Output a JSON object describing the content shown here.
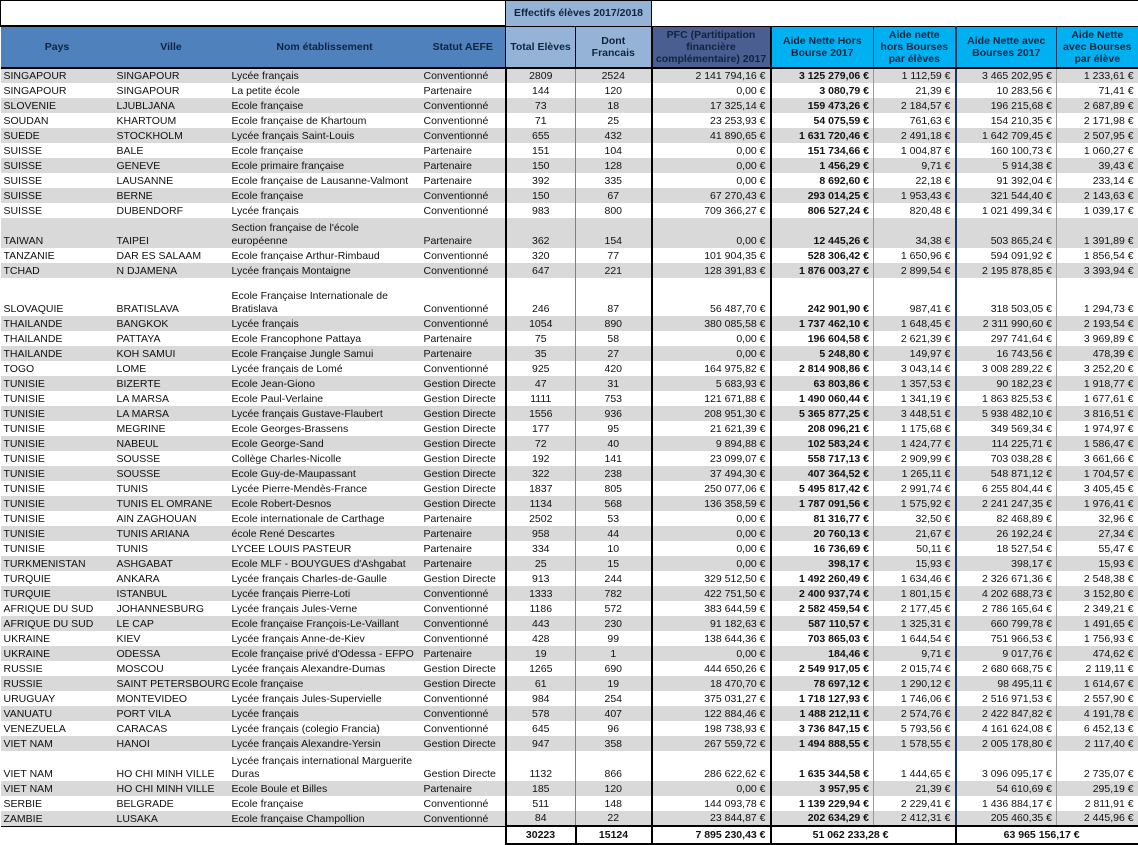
{
  "title_band": "Effectifs élèves 2017/2018",
  "columns": [
    "Pays",
    "Ville",
    "Nom établissement",
    "Statut AEFE",
    "Total Elèves",
    "Dont Francais",
    "PFC\n(Partitipation financière complémentaire) 2017",
    "Aide Nette Hors Bourse 2017",
    "Aide nette hors Bourses par élèves",
    "Aide Nette avec Bourses 2017",
    "Aide Nette avec Bourses par élève"
  ],
  "rows": [
    [
      "SINGAPOUR",
      "SINGAPOUR",
      "Lycée français",
      "Conventionné",
      "2809",
      "2524",
      "2 141 794,16 €",
      "3 125 279,06 €",
      "1 112,59 €",
      "3 465 202,95 €",
      "1 233,61 €"
    ],
    [
      "SINGAPOUR",
      "SINGAPOUR",
      "La petite école",
      "Partenaire",
      "144",
      "120",
      "0,00 €",
      "3 080,79 €",
      "21,39 €",
      "10 283,56 €",
      "71,41 €"
    ],
    [
      "SLOVENIE",
      "LJUBLJANA",
      "Ecole française",
      "Conventionné",
      "73",
      "18",
      "17 325,14 €",
      "159 473,26 €",
      "2 184,57 €",
      "196 215,68 €",
      "2 687,89 €"
    ],
    [
      "SOUDAN",
      "KHARTOUM",
      "Ecole française de Khartoum",
      "Conventionné",
      "71",
      "25",
      "23 253,93 €",
      "54 075,59 €",
      "761,63 €",
      "154 210,35 €",
      "2 171,98 €"
    ],
    [
      "SUEDE",
      "STOCKHOLM",
      "Lycée français Saint-Louis",
      "Conventionné",
      "655",
      "432",
      "41 890,65 €",
      "1 631 720,46 €",
      "2 491,18 €",
      "1 642 709,45 €",
      "2 507,95 €"
    ],
    [
      "SUISSE",
      "BALE",
      "Ecole française",
      "Partenaire",
      "151",
      "104",
      "0,00 €",
      "151 734,66 €",
      "1 004,87 €",
      "160 100,73 €",
      "1 060,27 €"
    ],
    [
      "SUISSE",
      "GENEVE",
      "Ecole primaire française",
      "Partenaire",
      "150",
      "128",
      "0,00 €",
      "1 456,29 €",
      "9,71 €",
      "5 914,38 €",
      "39,43 €"
    ],
    [
      "SUISSE",
      "LAUSANNE",
      "Ecole française de Lausanne-Valmont",
      "Partenaire",
      "392",
      "335",
      "0,00 €",
      "8 692,60 €",
      "22,18 €",
      "91 392,04 €",
      "233,14 €"
    ],
    [
      "SUISSE",
      "BERNE",
      "Ecole française",
      "Conventionné",
      "150",
      "67",
      "67 270,43 €",
      "293 014,25 €",
      "1 953,43 €",
      "321 544,40 €",
      "2 143,63 €"
    ],
    [
      "SUISSE",
      "DUBENDORF",
      "Lycée français",
      "Conventionné",
      "983",
      "800",
      "709 366,27 €",
      "806 527,24 €",
      "820,48 €",
      "1 021 499,34 €",
      "1 039,17 €"
    ],
    [
      "TAIWAN",
      "TAIPEI",
      "Section française de l'école européenne",
      "Partenaire",
      "362",
      "154",
      "0,00 €",
      "12 445,26 €",
      "34,38 €",
      "503 865,24 €",
      "1 391,89 €"
    ],
    [
      "TANZANIE",
      "DAR ES SALAAM",
      "Ecole française Arthur-Rimbaud",
      "Conventionné",
      "320",
      "77",
      "101 904,35 €",
      "528 306,42 €",
      "1 650,96 €",
      "594 091,92 €",
      "1 856,54 €"
    ],
    [
      "TCHAD",
      "N DJAMENA",
      "Lycée français Montaigne",
      "Conventionné",
      "647",
      "221",
      "128 391,83 €",
      "1 876 003,27 €",
      "2 899,54 €",
      "2 195 878,85 €",
      "3 393,94 €"
    ],
    [
      "SLOVAQUIE",
      "BRATISLAVA",
      "Ecole Française Internationale de Bratislava",
      "Conventionné",
      "246",
      "87",
      "56 487,70 €",
      "242 901,90 €",
      "987,41 €",
      "318 503,05 €",
      "1 294,73 €"
    ],
    [
      "THAILANDE",
      "BANGKOK",
      "Lycée français",
      "Conventionné",
      "1054",
      "890",
      "380 085,58 €",
      "1 737 462,10 €",
      "1 648,45 €",
      "2 311 990,60 €",
      "2 193,54 €"
    ],
    [
      "THAILANDE",
      "PATTAYA",
      "Ecole Francophone Pattaya",
      "Partenaire",
      "75",
      "58",
      "0,00 €",
      "196 604,58 €",
      "2 621,39 €",
      "297 741,64 €",
      "3 969,89 €"
    ],
    [
      "THAILANDE",
      "KOH SAMUI",
      "Ecole  Française Jungle Samui",
      "Partenaire",
      "35",
      "27",
      "0,00 €",
      "5 248,80 €",
      "149,97 €",
      "16 743,56 €",
      "478,39 €"
    ],
    [
      "TOGO",
      "LOME",
      "Lycée français de Lomé",
      "Conventionné",
      "925",
      "420",
      "164 975,82 €",
      "2 814 908,86 €",
      "3 043,14 €",
      "3 008 289,22 €",
      "3 252,20 €"
    ],
    [
      "TUNISIE",
      "BIZERTE",
      "Ecole Jean-Giono",
      "Gestion Directe",
      "47",
      "31",
      "5 683,93 €",
      "63 803,86 €",
      "1 357,53 €",
      "90 182,23 €",
      "1 918,77 €"
    ],
    [
      "TUNISIE",
      "LA MARSA",
      "Ecole Paul-Verlaine",
      "Gestion Directe",
      "1111",
      "753",
      "121 671,88 €",
      "1 490 060,44 €",
      "1 341,19 €",
      "1 863 825,53 €",
      "1 677,61 €"
    ],
    [
      "TUNISIE",
      "LA MARSA",
      "Lycée français Gustave-Flaubert",
      "Gestion Directe",
      "1556",
      "936",
      "208 951,30 €",
      "5 365 877,25 €",
      "3 448,51 €",
      "5 938 482,10 €",
      "3 816,51 €"
    ],
    [
      "TUNISIE",
      "MEGRINE",
      "Ecole Georges-Brassens",
      "Gestion Directe",
      "177",
      "95",
      "21 621,39 €",
      "208 096,21 €",
      "1 175,68 €",
      "349 569,34 €",
      "1 974,97 €"
    ],
    [
      "TUNISIE",
      "NABEUL",
      "Ecole George-Sand",
      "Gestion Directe",
      "72",
      "40",
      "9 894,88 €",
      "102 583,24 €",
      "1 424,77 €",
      "114 225,71 €",
      "1 586,47 €"
    ],
    [
      "TUNISIE",
      "SOUSSE",
      "Collège Charles-Nicolle",
      "Gestion Directe",
      "192",
      "141",
      "23 099,07 €",
      "558 717,13 €",
      "2 909,99 €",
      "703 038,28 €",
      "3 661,66 €"
    ],
    [
      "TUNISIE",
      "SOUSSE",
      "Ecole Guy-de-Maupassant",
      "Gestion Directe",
      "322",
      "238",
      "37 494,30 €",
      "407 364,52 €",
      "1 265,11 €",
      "548 871,12 €",
      "1 704,57 €"
    ],
    [
      "TUNISIE",
      "TUNIS",
      "Lycée Pierre-Mendès-France",
      "Gestion Directe",
      "1837",
      "805",
      "250 077,06 €",
      "5 495 817,42 €",
      "2 991,74 €",
      "6 255 804,44 €",
      "3 405,45 €"
    ],
    [
      "TUNISIE",
      "TUNIS EL OMRANE",
      "Ecole Robert-Desnos",
      "Gestion Directe",
      "1134",
      "568",
      "136 358,59 €",
      "1 787 091,56 €",
      "1 575,92 €",
      "2 241 247,35 €",
      "1 976,41 €"
    ],
    [
      "TUNISIE",
      "AIN ZAGHOUAN",
      "Ecole internationale de Carthage",
      "Partenaire",
      "2502",
      "53",
      "0,00 €",
      "81 316,77 €",
      "32,50 €",
      "82 468,89 €",
      "32,96 €"
    ],
    [
      "TUNISIE",
      "TUNIS ARIANA",
      "école  René Descartes",
      "Partenaire",
      "958",
      "44",
      "0,00 €",
      "20 760,13 €",
      "21,67 €",
      "26 192,24 €",
      "27,34 €"
    ],
    [
      "TUNISIE",
      "TUNIS",
      "LYCEE LOUIS PASTEUR",
      "Partenaire",
      "334",
      "10",
      "0,00 €",
      "16 736,69 €",
      "50,11 €",
      "18 527,54 €",
      "55,47 €"
    ],
    [
      "TURKMENISTAN",
      "ASHGABAT",
      "Ecole MLF - BOUYGUES d'Ashgabat",
      "Partenaire",
      "25",
      "15",
      "0,00 €",
      "398,17 €",
      "15,93 €",
      "398,17 €",
      "15,93 €"
    ],
    [
      "TURQUIE",
      "ANKARA",
      "Lycée français Charles-de-Gaulle",
      "Gestion Directe",
      "913",
      "244",
      "329 512,50 €",
      "1 492 260,49 €",
      "1 634,46 €",
      "2 326 671,36 €",
      "2 548,38 €"
    ],
    [
      "TURQUIE",
      "ISTANBUL",
      "Lycée français Pierre-Loti",
      "Conventionné",
      "1333",
      "782",
      "422 751,50 €",
      "2 400 937,74 €",
      "1 801,15 €",
      "4 202 688,73 €",
      "3 152,80 €"
    ],
    [
      "AFRIQUE DU SUD",
      "JOHANNESBURG",
      "Lycée français Jules-Verne",
      "Conventionné",
      "1186",
      "572",
      "383 644,59 €",
      "2 582 459,54 €",
      "2 177,45 €",
      "2 786 165,64 €",
      "2 349,21 €"
    ],
    [
      "AFRIQUE DU SUD",
      "LE CAP",
      "Ecole française François-Le-Vaillant",
      "Conventionné",
      "443",
      "230",
      "91 182,63 €",
      "587 110,57 €",
      "1 325,31 €",
      "660 799,78 €",
      "1 491,65 €"
    ],
    [
      "UKRAINE",
      "KIEV",
      "Lycée français Anne-de-Kiev",
      "Conventionné",
      "428",
      "99",
      "138 644,36 €",
      "703 865,03 €",
      "1 644,54 €",
      "751 966,53 €",
      "1 756,93 €"
    ],
    [
      "UKRAINE",
      "ODESSA",
      "Ecole française privé d'Odessa - EFPO",
      "Partenaire",
      "19",
      "1",
      "0,00 €",
      "184,46 €",
      "9,71 €",
      "9 017,76 €",
      "474,62 €"
    ],
    [
      "RUSSIE",
      "MOSCOU",
      "Lycée français Alexandre-Dumas",
      "Gestion Directe",
      "1265",
      "690",
      "444 650,26 €",
      "2 549 917,05 €",
      "2 015,74 €",
      "2 680 668,75 €",
      "2 119,11 €"
    ],
    [
      "RUSSIE",
      "SAINT PETERSBOURG",
      "Ecole française",
      "Gestion Directe",
      "61",
      "19",
      "18 470,70 €",
      "78 697,12 €",
      "1 290,12 €",
      "98 495,11 €",
      "1 614,67 €"
    ],
    [
      "URUGUAY",
      "MONTEVIDEO",
      "Lycée français Jules-Supervielle",
      "Conventionné",
      "984",
      "254",
      "375 031,27 €",
      "1 718 127,93 €",
      "1 746,06 €",
      "2 516 971,53 €",
      "2 557,90 €"
    ],
    [
      "VANUATU",
      "PORT VILA",
      "Lycée français",
      "Conventionné",
      "578",
      "407",
      "122 884,46 €",
      "1 488 212,11 €",
      "2 574,76 €",
      "2 422 847,82 €",
      "4 191,78 €"
    ],
    [
      "VENEZUELA",
      "CARACAS",
      "Lycée français (colegio Francia)",
      "Conventionné",
      "645",
      "96",
      "198 738,93 €",
      "3 736 847,15 €",
      "5 793,56 €",
      "4 161 624,08 €",
      "6 452,13 €"
    ],
    [
      "VIET NAM",
      "HANOI",
      "Lycée français Alexandre-Yersin",
      "Gestion Directe",
      "947",
      "358",
      "267 559,72 €",
      "1 494 888,55 €",
      "1 578,55 €",
      "2 005 178,80 €",
      "2 117,40 €"
    ],
    [
      "VIET NAM",
      "HO CHI MINH VILLE",
      "Lycée français international Marguerite Duras",
      "Gestion Directe",
      "1132",
      "866",
      "286 622,62 €",
      "1 635 344,58 €",
      "1 444,65 €",
      "3 096 095,17 €",
      "2 735,07 €"
    ],
    [
      "VIET NAM",
      "HO CHI MINH VILLE",
      "Ecole Boule et Billes",
      "Partenaire",
      "185",
      "120",
      "0,00 €",
      "3 957,95 €",
      "21,39 €",
      "54 610,69 €",
      "295,19 €"
    ],
    [
      "SERBIE",
      "BELGRADE",
      "Ecole française",
      "Conventionné",
      "511",
      "148",
      "144 093,78 €",
      "1 139 229,94 €",
      "2 229,41 €",
      "1 436 884,17 €",
      "2 811,91 €"
    ],
    [
      "ZAMBIE",
      "LUSAKA",
      "Ecole française Champollion",
      "Conventionné",
      "84",
      "22",
      "23 844,87 €",
      "202 634,29 €",
      "2 412,31 €",
      "205 460,35 €",
      "2 445,96 €"
    ]
  ],
  "totals": {
    "total_eleves": "30223",
    "dont_francais": "15124",
    "pfc": "7 895 230,43 €",
    "aide_hors": "51 062 233,28 €",
    "aide_avec": "63 965 156,17 €"
  },
  "colors": {
    "header_blue": "#4f81bd",
    "header_light_blue": "#95b3d7",
    "pfc_header_blue": "#4b5e91",
    "aide_header_cyan": "#00b0f0",
    "stripe_gray": "#d9d9d9",
    "block_border_navy": "#17375e"
  }
}
